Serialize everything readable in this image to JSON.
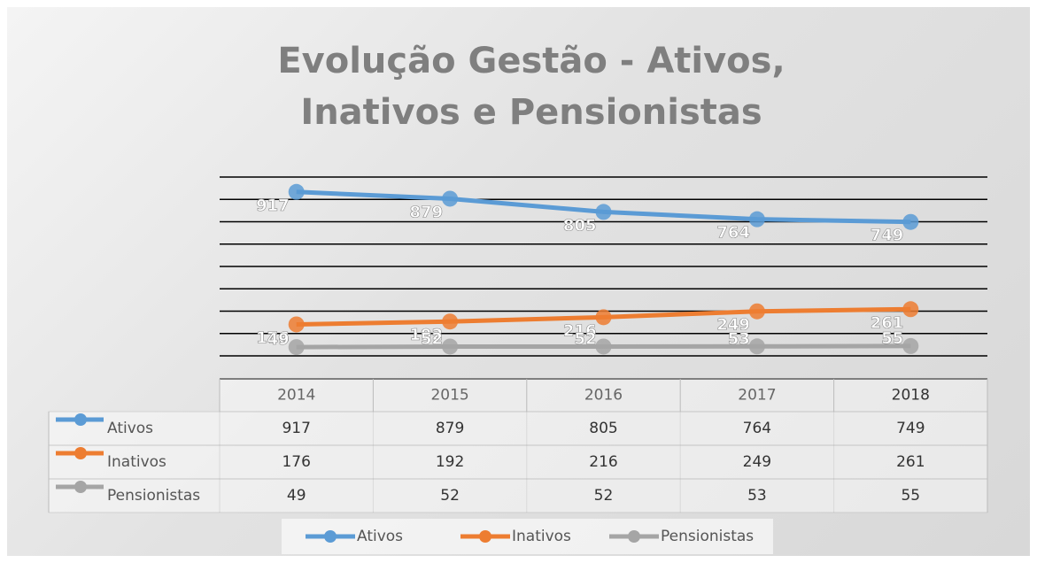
{
  "chart_data": {
    "type": "line",
    "title": "Evolução Gestão - Ativos, Inativos e Pensionistas",
    "categories": [
      "2014",
      "2015",
      "2016",
      "2017",
      "2018"
    ],
    "series": [
      {
        "name": "Ativos",
        "color": "#5b9bd5",
        "values": [
          917,
          879,
          805,
          764,
          749
        ]
      },
      {
        "name": "Inativos",
        "color": "#ed7d31",
        "values": [
          176,
          192,
          216,
          249,
          261
        ]
      },
      {
        "name": "Pensionistas",
        "color": "#a5a5a5",
        "values": [
          49,
          52,
          52,
          53,
          55
        ]
      }
    ],
    "ylim": [
      0,
      1000
    ],
    "yticks": [
      0,
      125,
      250,
      375,
      500,
      625,
      750,
      875,
      1000
    ],
    "grid": true,
    "legend": "bottom"
  }
}
